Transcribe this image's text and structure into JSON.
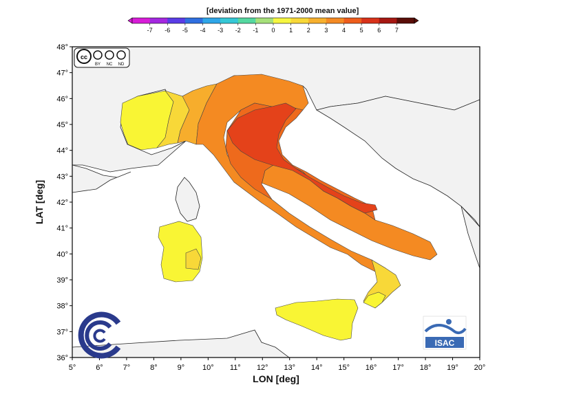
{
  "colorbar": {
    "title": "[deviation from the 1971-2000 mean value]",
    "ticks": [
      "-7",
      "-6",
      "-5",
      "-4",
      "-3",
      "-2",
      "-1",
      "0",
      "1",
      "2",
      "3",
      "4",
      "5",
      "6",
      "7"
    ],
    "colors": [
      "#d81cd8",
      "#a428e0",
      "#5a3ce6",
      "#2f6fe0",
      "#2ea6e8",
      "#35c8d6",
      "#55d8a0",
      "#a6e07a",
      "#f6f640",
      "#f8d838",
      "#f7b02e",
      "#f48a24",
      "#ee5d1c",
      "#d8321a",
      "#a61812",
      "#5a0e08"
    ]
  },
  "map": {
    "ylabel": "LAT [deg]",
    "xlabel": "LON [deg]",
    "lat_ticks": [
      "36°",
      "37°",
      "38°",
      "39°",
      "40°",
      "41°",
      "42°",
      "43°",
      "44°",
      "45°",
      "46°",
      "47°",
      "48°"
    ],
    "lon_ticks": [
      "5°",
      "6°",
      "7°",
      "8°",
      "9°",
      "10°",
      "11°",
      "12°",
      "13°",
      "14°",
      "15°",
      "16°",
      "17°",
      "18°",
      "19°",
      "20°"
    ],
    "lon_range": [
      5,
      20
    ],
    "lat_range": [
      36,
      48
    ],
    "sea_color": "#ffffff",
    "land_color": "#f2f2f2",
    "zone_colors": {
      "one": "#f9f534",
      "two": "#f8d838",
      "three": "#f7ad2c",
      "four": "#f48a22",
      "five": "#ee6a1c",
      "six": "#e4421a"
    }
  },
  "license": {
    "cc": "cc",
    "by": "BY",
    "nc": "NC",
    "nd": "ND"
  },
  "logo": {
    "isac": "ISAC"
  }
}
